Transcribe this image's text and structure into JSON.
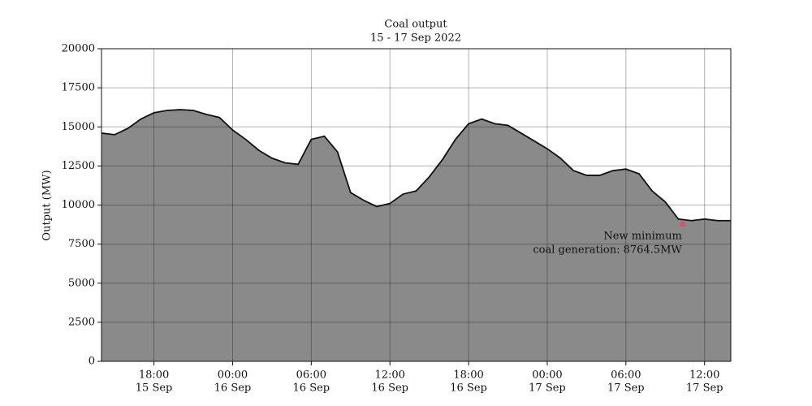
{
  "chart_data": {
    "type": "area",
    "title": "Coal output",
    "subtitle": "15 - 17 Sep 2022",
    "y_label": "Output (MW)",
    "x": [
      "15 Sep 14:00",
      "15 Sep 15:00",
      "15 Sep 16:00",
      "15 Sep 17:00",
      "15 Sep 18:00",
      "15 Sep 19:00",
      "15 Sep 20:00",
      "15 Sep 21:00",
      "15 Sep 22:00",
      "15 Sep 23:00",
      "16 Sep 00:00",
      "16 Sep 01:00",
      "16 Sep 02:00",
      "16 Sep 03:00",
      "16 Sep 04:00",
      "16 Sep 05:00",
      "16 Sep 06:00",
      "16 Sep 07:00",
      "16 Sep 08:00",
      "16 Sep 09:00",
      "16 Sep 10:00",
      "16 Sep 11:00",
      "16 Sep 12:00",
      "16 Sep 13:00",
      "16 Sep 14:00",
      "16 Sep 15:00",
      "16 Sep 16:00",
      "16 Sep 17:00",
      "16 Sep 18:00",
      "16 Sep 19:00",
      "16 Sep 20:00",
      "16 Sep 21:00",
      "16 Sep 22:00",
      "16 Sep 23:00",
      "17 Sep 00:00",
      "17 Sep 01:00",
      "17 Sep 02:00",
      "17 Sep 03:00",
      "17 Sep 04:00",
      "17 Sep 05:00",
      "17 Sep 06:00",
      "17 Sep 07:00",
      "17 Sep 08:00",
      "17 Sep 09:00",
      "17 Sep 10:00",
      "17 Sep 11:00",
      "17 Sep 12:00",
      "17 Sep 13:00",
      "17 Sep 14:00"
    ],
    "series": [
      {
        "name": "Coal output",
        "color": "#8a8a8a",
        "line_color": "#111111",
        "values": [
          14600,
          14500,
          14900,
          15500,
          15900,
          16050,
          16100,
          16050,
          15800,
          15600,
          14800,
          14200,
          13500,
          13000,
          12700,
          12600,
          14200,
          14400,
          13400,
          10800,
          10300,
          9900,
          10100,
          10700,
          10900,
          11800,
          12900,
          14200,
          15200,
          15500,
          15200,
          15100,
          14600,
          14100,
          13600,
          13000,
          12200,
          11900,
          11900,
          12200,
          12300,
          12000,
          10900,
          10200,
          9100,
          9000,
          9100,
          9000,
          9000
        ]
      }
    ],
    "minimum": {
      "x": "17 Sep 10:20",
      "value": 8764.5,
      "color": "#d9536f",
      "label": [
        "New minimum",
        "coal generation: 8764.5MW"
      ]
    },
    "xlim": [
      "15 Sep 14:00",
      "17 Sep 14:00"
    ],
    "xticks": [
      {
        "value": "15 Sep 18:00",
        "label": [
          "18:00",
          "15 Sep"
        ]
      },
      {
        "value": "16 Sep 00:00",
        "label": [
          "00:00",
          "16 Sep"
        ]
      },
      {
        "value": "16 Sep 06:00",
        "label": [
          "06:00",
          "16 Sep"
        ]
      },
      {
        "value": "16 Sep 12:00",
        "label": [
          "12:00",
          "16 Sep"
        ]
      },
      {
        "value": "16 Sep 18:00",
        "label": [
          "18:00",
          "16 Sep"
        ]
      },
      {
        "value": "17 Sep 00:00",
        "label": [
          "00:00",
          "17 Sep"
        ]
      },
      {
        "value": "17 Sep 06:00",
        "label": [
          "06:00",
          "17 Sep"
        ]
      },
      {
        "value": "17 Sep 12:00",
        "label": [
          "12:00",
          "17 Sep"
        ]
      }
    ],
    "ylim": [
      0,
      20000
    ],
    "yticks": [
      0,
      2500,
      5000,
      7500,
      10000,
      12500,
      15000,
      17500,
      20000
    ],
    "grid": true
  }
}
